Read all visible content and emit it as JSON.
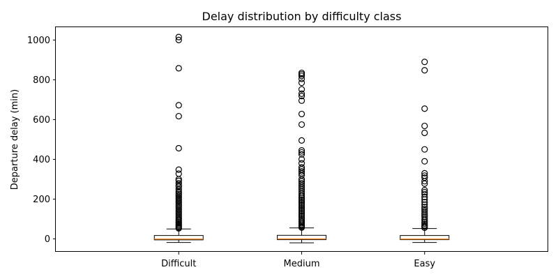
{
  "chart_data": {
    "type": "box",
    "title": "Delay distribution by difficulty class",
    "xlabel": "",
    "ylabel": "Departure delay (min)",
    "ylim": [
      -65,
      1068
    ],
    "yticks": [
      0,
      200,
      400,
      600,
      800,
      1000
    ],
    "grid": false,
    "categories": [
      "Difficult",
      "Medium",
      "Easy"
    ],
    "boxes": [
      {
        "category": "Difficult",
        "whisker_low": -18,
        "q1": -5,
        "median": -1,
        "q3": 17,
        "whisker_high": 50,
        "outliers": [
          1015,
          1000,
          858,
          672,
          617,
          456,
          348,
          328,
          300,
          292,
          280,
          270,
          262,
          250,
          240,
          232,
          225,
          218,
          210,
          202,
          195,
          188,
          180,
          172,
          165,
          158,
          150,
          142,
          135,
          128,
          120,
          112,
          105,
          98,
          92,
          86,
          80,
          74,
          68,
          62,
          57,
          53
        ]
      },
      {
        "category": "Medium",
        "whisker_low": -20,
        "q1": -4,
        "median": 0,
        "q3": 18,
        "whisker_high": 55,
        "outliers": [
          835,
          828,
          820,
          805,
          785,
          752,
          730,
          718,
          695,
          628,
          575,
          495,
          445,
          435,
          425,
          400,
          380,
          360,
          350,
          340,
          330,
          320,
          300,
          290,
          280,
          270,
          260,
          250,
          240,
          230,
          220,
          212,
          204,
          196,
          188,
          180,
          172,
          164,
          156,
          148,
          140,
          132,
          124,
          116,
          108,
          100,
          93,
          86,
          79,
          72,
          66,
          61,
          57
        ]
      },
      {
        "category": "Easy",
        "whisker_low": -18,
        "q1": -4,
        "median": -1,
        "q3": 17,
        "whisker_high": 52,
        "outliers": [
          890,
          848,
          655,
          568,
          533,
          450,
          390,
          330,
          318,
          308,
          290,
          278,
          245,
          235,
          225,
          210,
          198,
          185,
          172,
          160,
          150,
          140,
          130,
          120,
          110,
          100,
          92,
          84,
          76,
          68,
          62,
          56
        ]
      }
    ],
    "colors": {
      "box": "#000000",
      "median": "#ff7f0e",
      "outlier_edge": "#000000"
    }
  }
}
